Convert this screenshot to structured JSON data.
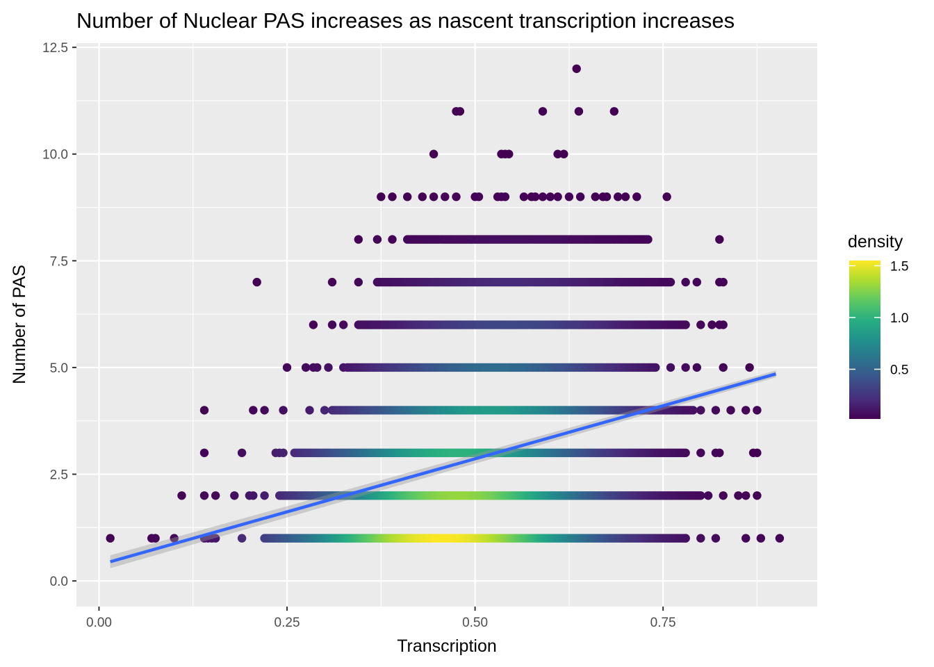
{
  "chart_data": {
    "type": "scatter",
    "title": "Number of Nuclear PAS increases as nascent transcription increases",
    "xlabel": "Transcription",
    "ylabel": "Number of PAS",
    "xlim": [
      -0.03,
      0.955
    ],
    "ylim": [
      -0.6,
      12.6
    ],
    "x_ticks": [
      0.0,
      0.25,
      0.5,
      0.75
    ],
    "x_tick_labels": [
      "0.00",
      "0.25",
      "0.50",
      "0.75"
    ],
    "y_ticks": [
      0.0,
      2.5,
      5.0,
      7.5,
      10.0,
      12.5
    ],
    "y_tick_labels": [
      "0.0",
      "2.5",
      "5.0",
      "7.5",
      "10.0",
      "12.5"
    ],
    "grid": true,
    "point_color_scale": "viridis",
    "legend": {
      "title": "density",
      "position": "right",
      "range": [
        0.02,
        1.55
      ],
      "ticks": [
        0.5,
        1.0,
        1.5
      ],
      "tick_labels": [
        "0.5",
        "1.0",
        "1.5"
      ]
    },
    "series": [
      {
        "y": 1,
        "x_min": 0.015,
        "x_max": 0.905,
        "dense_min": 0.22,
        "dense_max": 0.78,
        "peak_x": 0.46,
        "peak_density": 1.55,
        "spread": 0.13,
        "sparse_x": [
          0.015,
          0.07,
          0.075,
          0.1,
          0.14,
          0.145,
          0.15,
          0.155,
          0.19,
          0.78,
          0.8,
          0.82,
          0.86,
          0.88,
          0.905
        ]
      },
      {
        "y": 2,
        "x_min": 0.11,
        "x_max": 0.875,
        "dense_min": 0.24,
        "dense_max": 0.8,
        "peak_x": 0.48,
        "peak_density": 1.3,
        "spread": 0.12,
        "sparse_x": [
          0.11,
          0.14,
          0.155,
          0.18,
          0.2,
          0.205,
          0.22,
          0.81,
          0.83,
          0.85,
          0.86,
          0.875
        ]
      },
      {
        "y": 3,
        "x_min": 0.14,
        "x_max": 0.875,
        "dense_min": 0.26,
        "dense_max": 0.78,
        "peak_x": 0.48,
        "peak_density": 1.0,
        "spread": 0.12,
        "sparse_x": [
          0.14,
          0.19,
          0.235,
          0.24,
          0.245,
          0.8,
          0.82,
          0.825,
          0.87,
          0.875
        ]
      },
      {
        "y": 4,
        "x_min": 0.14,
        "x_max": 0.875,
        "dense_min": 0.31,
        "dense_max": 0.79,
        "peak_x": 0.52,
        "peak_density": 0.85,
        "spread": 0.12,
        "sparse_x": [
          0.14,
          0.205,
          0.22,
          0.245,
          0.28,
          0.3,
          0.8,
          0.82,
          0.84,
          0.86,
          0.875
        ]
      },
      {
        "y": 5,
        "x_min": 0.25,
        "x_max": 0.865,
        "dense_min": 0.33,
        "dense_max": 0.74,
        "peak_x": 0.53,
        "peak_density": 0.55,
        "spread": 0.11,
        "sparse_x": [
          0.25,
          0.275,
          0.285,
          0.29,
          0.305,
          0.325,
          0.76,
          0.78,
          0.795,
          0.83,
          0.865
        ]
      },
      {
        "y": 6,
        "x_min": 0.285,
        "x_max": 0.83,
        "dense_min": 0.345,
        "dense_max": 0.78,
        "peak_x": 0.55,
        "peak_density": 0.35,
        "spread": 0.11,
        "sparse_x": [
          0.285,
          0.31,
          0.325,
          0.8,
          0.815,
          0.825,
          0.83
        ]
      },
      {
        "y": 7,
        "x_min": 0.21,
        "x_max": 0.83,
        "dense_min": 0.37,
        "dense_max": 0.76,
        "peak_x": 0.55,
        "peak_density": 0.2,
        "spread": 0.11,
        "sparse_x": [
          0.21,
          0.31,
          0.345,
          0.78,
          0.795,
          0.825,
          0.83
        ]
      },
      {
        "y": 8,
        "x_min": 0.345,
        "x_max": 0.825,
        "dense_min": 0.41,
        "dense_max": 0.73,
        "peak_x": 0.56,
        "peak_density": 0.08,
        "spread": 0.1,
        "sparse_x": [
          0.345,
          0.37,
          0.39,
          0.825
        ]
      },
      {
        "y": 9,
        "x_min": 0.375,
        "x_max": 0.755,
        "dense_min": 0,
        "dense_max": 0,
        "peak_x": 0.55,
        "peak_density": 0.03,
        "spread": 0.1,
        "sparse_x": [
          0.375,
          0.39,
          0.41,
          0.43,
          0.445,
          0.46,
          0.475,
          0.5,
          0.505,
          0.53,
          0.535,
          0.54,
          0.565,
          0.575,
          0.58,
          0.59,
          0.6,
          0.61,
          0.625,
          0.64,
          0.66,
          0.67,
          0.675,
          0.69,
          0.7,
          0.715,
          0.755
        ]
      },
      {
        "y": 10,
        "x_min": 0.445,
        "x_max": 0.625,
        "dense_min": 0,
        "dense_max": 0,
        "peak_x": 0.55,
        "peak_density": 0.02,
        "spread": 0.1,
        "sparse_x": [
          0.445,
          0.535,
          0.54,
          0.545,
          0.61,
          0.618
        ]
      },
      {
        "y": 11,
        "x_min": 0.475,
        "x_max": 0.69,
        "dense_min": 0,
        "dense_max": 0,
        "peak_x": 0.55,
        "peak_density": 0.02,
        "spread": 0.1,
        "sparse_x": [
          0.475,
          0.48,
          0.59,
          0.638,
          0.685
        ]
      },
      {
        "y": 12,
        "x_min": 0.635,
        "x_max": 0.635,
        "dense_min": 0,
        "dense_max": 0,
        "peak_x": 0.635,
        "peak_density": 0.02,
        "spread": 0.1,
        "sparse_x": [
          0.635
        ]
      }
    ],
    "trend_line": {
      "method": "lm",
      "color": "#3366ff",
      "x": [
        0.015,
        0.9
      ],
      "y": [
        0.45,
        4.85
      ],
      "ci_halfwidth": [
        0.15,
        0.08
      ]
    }
  }
}
